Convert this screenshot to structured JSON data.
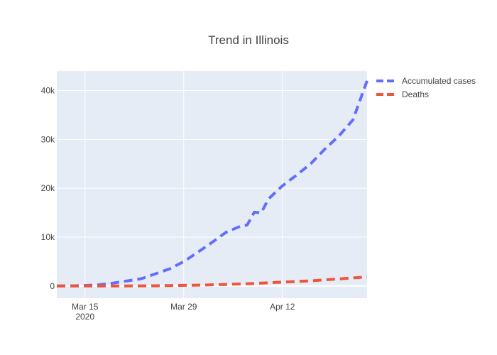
{
  "chart_data": {
    "type": "line",
    "title": "Trend in Illinois",
    "xlabel": "",
    "ylabel": "",
    "x_axis": {
      "type": "date",
      "range": [
        "2020-03-11",
        "2020-04-24"
      ],
      "ticks": [
        {
          "date": "2020-03-15",
          "label": "Mar 15",
          "sublabel": "2020"
        },
        {
          "date": "2020-03-29",
          "label": "Mar 29",
          "sublabel": ""
        },
        {
          "date": "2020-04-12",
          "label": "Apr 12",
          "sublabel": ""
        }
      ]
    },
    "y_axis": {
      "range": [
        -2500,
        44000
      ],
      "ticks": [
        {
          "value": 0,
          "label": "0"
        },
        {
          "value": 10000,
          "label": "10k"
        },
        {
          "value": 20000,
          "label": "20k"
        },
        {
          "value": 30000,
          "label": "30k"
        },
        {
          "value": 40000,
          "label": "40k"
        }
      ]
    },
    "grid": true,
    "legend_position": "top-right",
    "x": [
      "2020-03-11",
      "2020-03-13",
      "2020-03-15",
      "2020-03-17",
      "2020-03-19",
      "2020-03-21",
      "2020-03-23",
      "2020-03-25",
      "2020-03-27",
      "2020-03-29",
      "2020-03-31",
      "2020-04-02",
      "2020-04-04",
      "2020-04-06",
      "2020-04-07",
      "2020-04-08",
      "2020-04-09",
      "2020-04-10",
      "2020-04-12",
      "2020-04-14",
      "2020-04-16",
      "2020-04-18",
      "2020-04-20",
      "2020-04-22",
      "2020-04-24"
    ],
    "series": [
      {
        "name": "Accumulated cases",
        "color": "#636efa",
        "values": [
          0,
          30,
          100,
          250,
          600,
          1050,
          1500,
          2500,
          3500,
          5000,
          6900,
          8900,
          11000,
          12200,
          12500,
          15100,
          15000,
          17800,
          20500,
          22700,
          25000,
          28000,
          30700,
          34000,
          42000
        ]
      },
      {
        "name": "Deaths",
        "color": "#ef553b",
        "values": [
          0,
          0,
          2,
          5,
          10,
          20,
          30,
          50,
          80,
          130,
          180,
          240,
          320,
          420,
          470,
          520,
          580,
          650,
          780,
          920,
          1050,
          1250,
          1450,
          1650,
          1850
        ]
      }
    ]
  }
}
